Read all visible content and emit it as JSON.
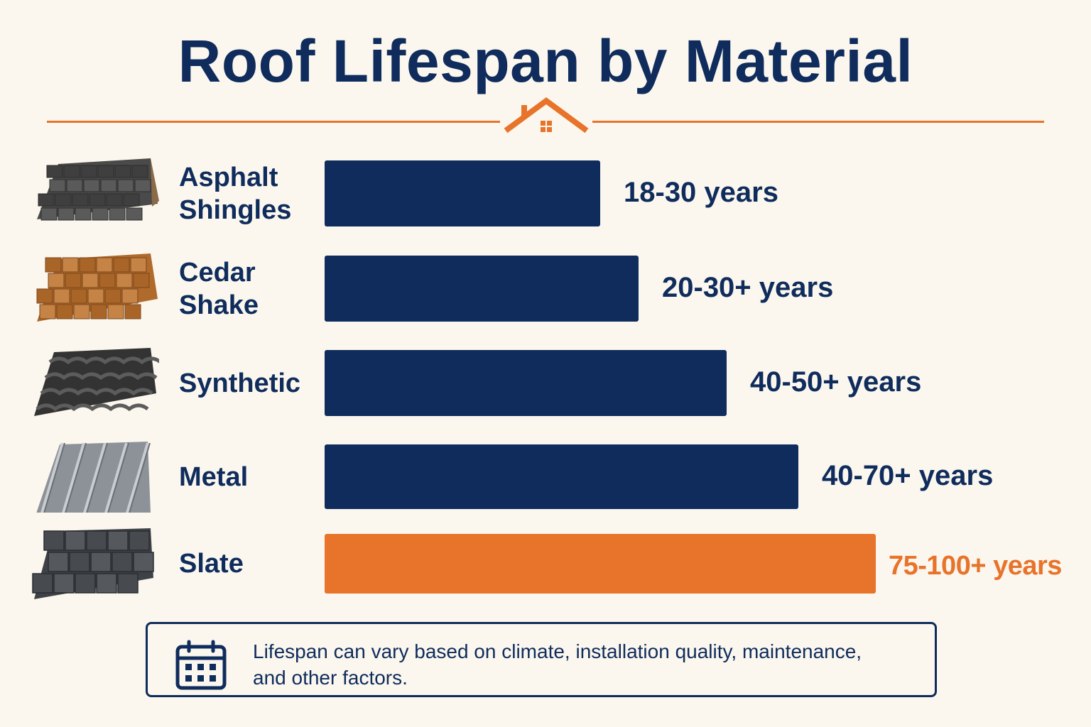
{
  "title": "Roof Lifespan by Material",
  "colors": {
    "accent": "#e8732a",
    "primary": "#0f2c5c",
    "background": "#fbf7ee"
  },
  "header_icon": "house-icon",
  "chart_data": {
    "type": "bar",
    "orientation": "horizontal",
    "categories": [
      "Asphalt Shingles",
      "Cedar Shake",
      "Synthetic",
      "Metal",
      "Slate"
    ],
    "category_lines": [
      [
        "Asphalt",
        "Shingles"
      ],
      [
        "Cedar",
        "Shake"
      ],
      [
        "Synthetic"
      ],
      [
        "Metal"
      ],
      [
        "Slate"
      ]
    ],
    "value_labels": [
      "18-30 years",
      "20-30+ years",
      "40-50+ years",
      "40-70+ years",
      "75-100+ years"
    ],
    "ranges": [
      [
        18,
        30
      ],
      [
        20,
        30
      ],
      [
        40,
        50
      ],
      [
        40,
        70
      ],
      [
        75,
        100
      ]
    ],
    "bar_fraction": [
      0.5,
      0.57,
      0.73,
      0.86,
      1.0
    ],
    "bar_colors": [
      "#0f2c5c",
      "#0f2c5c",
      "#0f2c5c",
      "#0f2c5c",
      "#e8732a"
    ],
    "highlighted": "Slate",
    "material_icons": [
      "asphalt-shingles-icon",
      "cedar-shake-icon",
      "synthetic-tile-icon",
      "metal-panel-icon",
      "slate-tile-icon"
    ],
    "xlabel": "",
    "ylabel": "",
    "grid": false,
    "legend": "none"
  },
  "note": {
    "icon": "calendar-icon",
    "text": "Lifespan can vary based on climate, installation quality, maintenance, and other factors."
  }
}
